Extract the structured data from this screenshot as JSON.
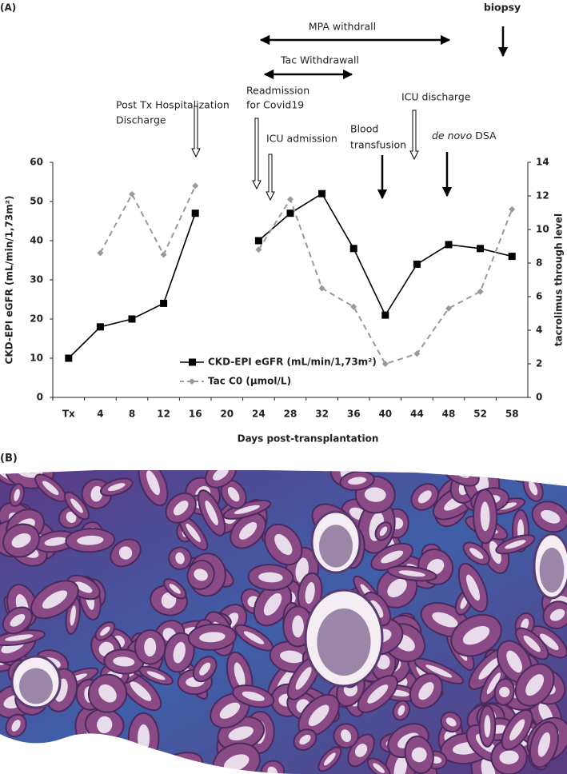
{
  "panel_labels": [
    "(A)",
    "(B)"
  ],
  "chart_data": {
    "type": "line",
    "categories": [
      "Tx",
      "4",
      "8",
      "12",
      "16",
      "20",
      "24",
      "28",
      "32",
      "36",
      "40",
      "44",
      "48",
      "52",
      "58"
    ],
    "series": [
      {
        "name": "CKD-EPI eGFR (mL/min/1,73m²)",
        "color": "#000000",
        "marker": "square",
        "dashed": false,
        "values": [
          10,
          18,
          20,
          24,
          47,
          null,
          40,
          47,
          52,
          38,
          21,
          34,
          39,
          38,
          36
        ]
      },
      {
        "name": "Tac C0 (µmol/L)",
        "color": "#999999",
        "marker": "diamond",
        "dashed": true,
        "axis": "y2",
        "values": [
          null,
          8.6,
          12.1,
          8.5,
          12.6,
          null,
          8.8,
          11.8,
          6.5,
          5.4,
          2.0,
          2.6,
          5.3,
          6.3,
          11.2
        ]
      }
    ],
    "ylim": [
      0,
      60
    ],
    "yticks": [
      0,
      10,
      20,
      30,
      40,
      50,
      60
    ],
    "y2lim": [
      0,
      14
    ],
    "y2ticks": [
      0,
      2,
      4,
      6,
      8,
      10,
      12,
      14
    ],
    "ylabel": "CKD-EPI eGFR (mL/min/1,73m²)",
    "y2label": "tacrolimus through level",
    "xlabel": "Days post-transplantation",
    "grid": false,
    "annotations": {
      "biopsy": "biopsy",
      "mpa": "MPA withdrall",
      "tac": "Tac Withdrawall",
      "discharge": [
        "Post Tx Hospitalization",
        "Discharge"
      ],
      "readmission": [
        "Readmission",
        "for Covid19"
      ],
      "icu_admission": "ICU admission",
      "transfusion": [
        "Blood",
        "transfusion"
      ],
      "icu_discharge": "ICU discharge",
      "dsa": [
        "de novo",
        "DSA"
      ]
    }
  }
}
